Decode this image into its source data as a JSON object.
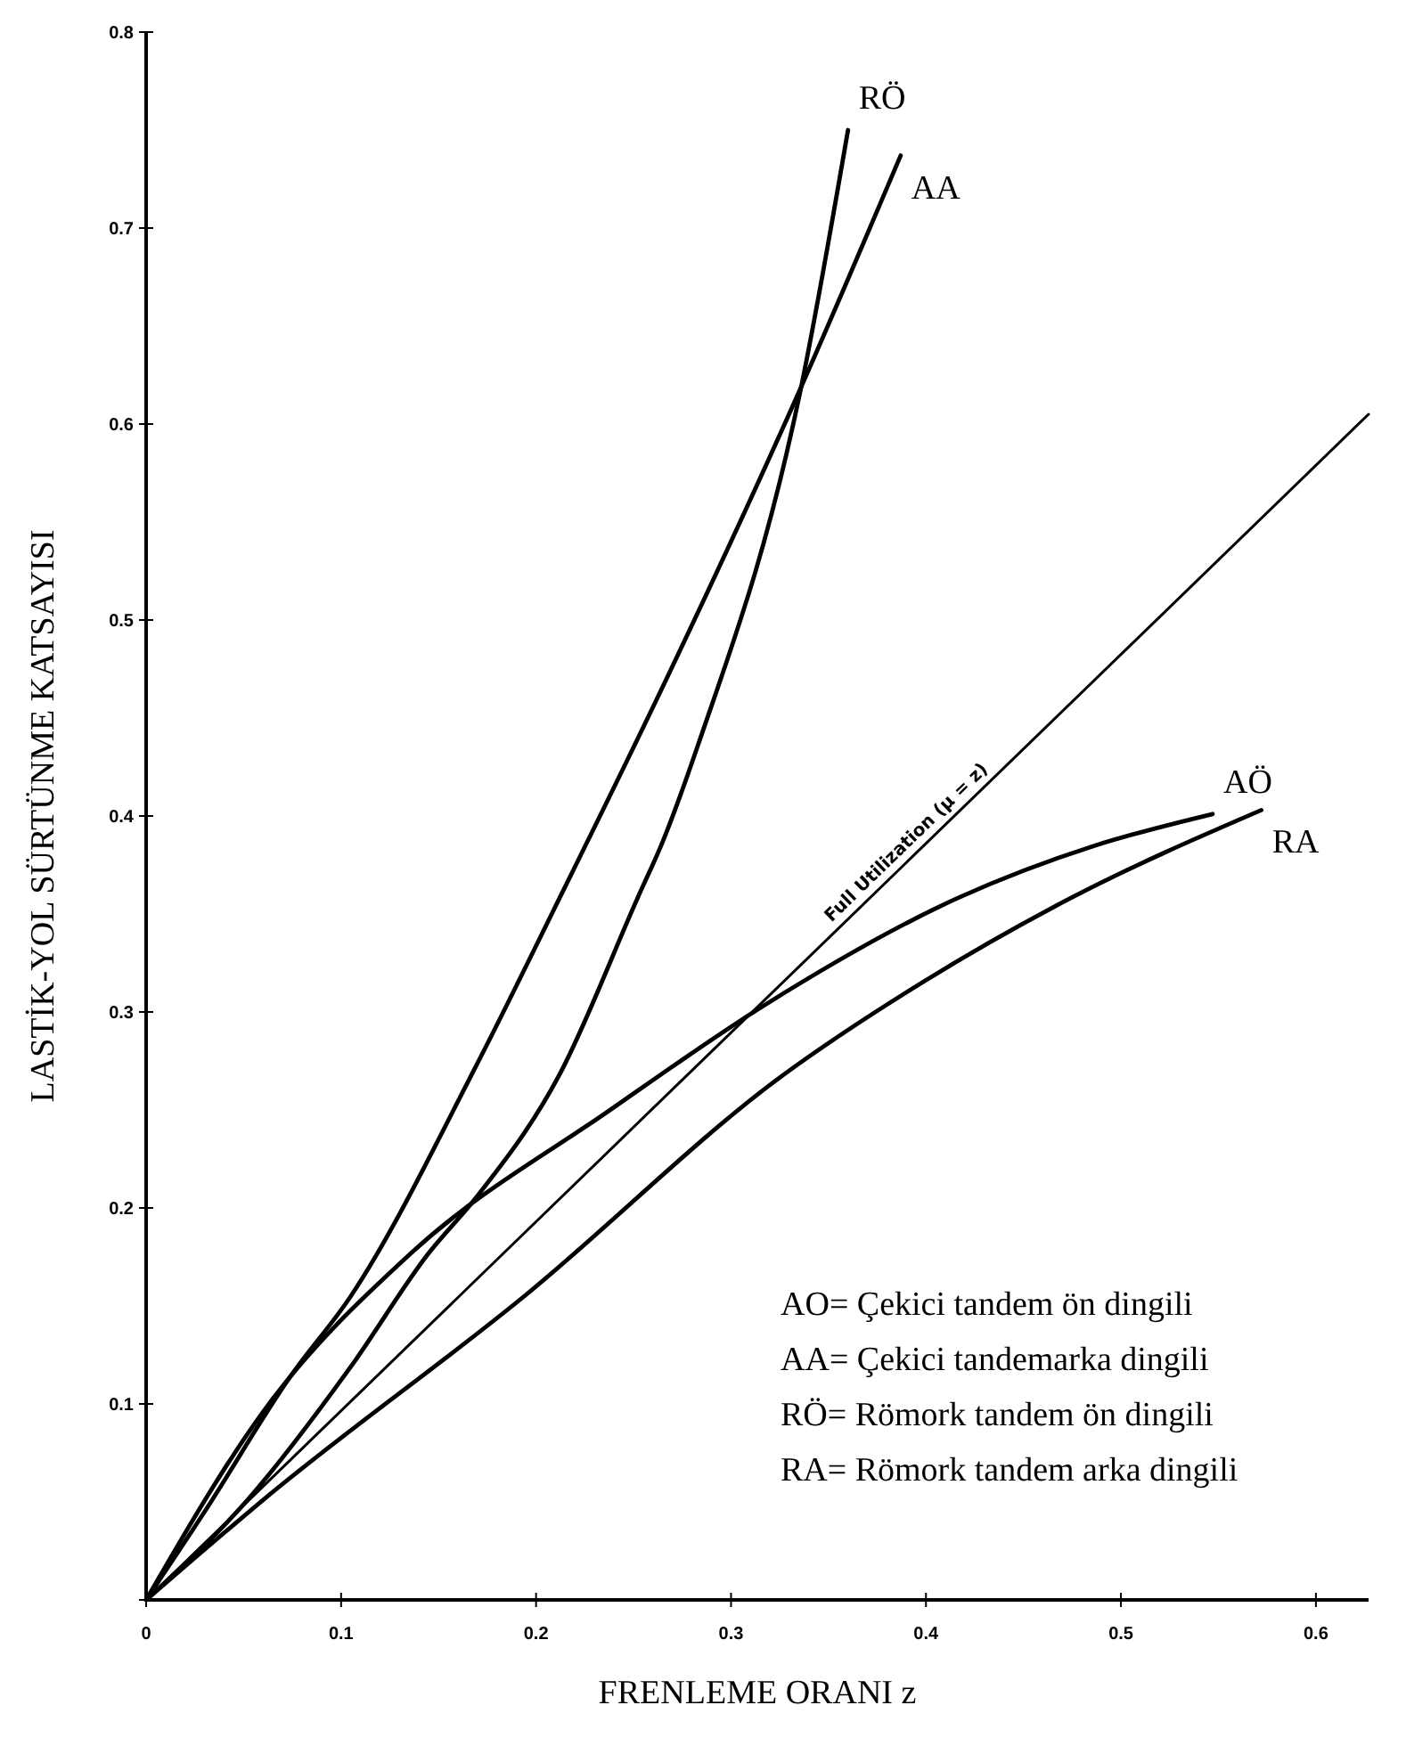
{
  "chart_data": {
    "type": "line",
    "xlabel": "FRENLEME ORANI z",
    "ylabel": "LASTİK-YOL SÜRTÜNME KATSAYISI",
    "xlim": [
      0,
      0.627
    ],
    "ylim": [
      0,
      0.8
    ],
    "xticks": [
      {
        "value": 0,
        "label": "0"
      },
      0.1,
      0.2,
      0.3,
      0.4,
      0.5,
      0.6
    ],
    "yticks": [
      {
        "value": 0,
        "label": null
      },
      0.1,
      0.2,
      0.3,
      0.4,
      0.5,
      0.6,
      0.7,
      0.8
    ],
    "grid": false,
    "marker": "none",
    "line_style": "solid",
    "series": [
      {
        "name": "RÖ",
        "color": "#000000",
        "x": [
          0,
          0.052,
          0.105,
          0.145,
          0.169,
          0.212,
          0.252,
          0.265,
          0.283,
          0.336,
          0.36
        ],
        "values": [
          0,
          0.051,
          0.119,
          0.177,
          0.205,
          0.268,
          0.358,
          0.387,
          0.436,
          0.619,
          0.75
        ]
      },
      {
        "name": "AA",
        "color": "#000000",
        "x": [
          0,
          0.03,
          0.074,
          0.105,
          0.169,
          0.212,
          0.265,
          0.336,
          0.387
        ],
        "values": [
          0,
          0.045,
          0.114,
          0.155,
          0.272,
          0.358,
          0.466,
          0.619,
          0.737
        ]
      },
      {
        "name": "AÖ",
        "color": "#000000",
        "x": [
          0,
          0.06,
          0.136,
          0.238,
          0.318,
          0.416,
          0.487,
          0.547
        ],
        "values": [
          0,
          0.096,
          0.177,
          0.25,
          0.304,
          0.358,
          0.385,
          0.401
        ]
      },
      {
        "name": "RA",
        "color": "#000000",
        "x": [
          0,
          0.06,
          0.194,
          0.327,
          0.398,
          0.474,
          0.572
        ],
        "values": [
          0,
          0.051,
          0.155,
          0.268,
          0.315,
          0.358,
          0.403
        ]
      },
      {
        "name": "Full Utilization (μ = z)",
        "color": "#000000",
        "x": [
          0,
          0.627
        ],
        "values": [
          0,
          0.605
        ]
      }
    ],
    "annotations": [
      "AO= Çekici tandem ön dingili",
      "AA= Çekici tandemarka dingili",
      "RÖ= Römork tandem ön dingili",
      "RA= Römork tandem arka dingili"
    ]
  }
}
